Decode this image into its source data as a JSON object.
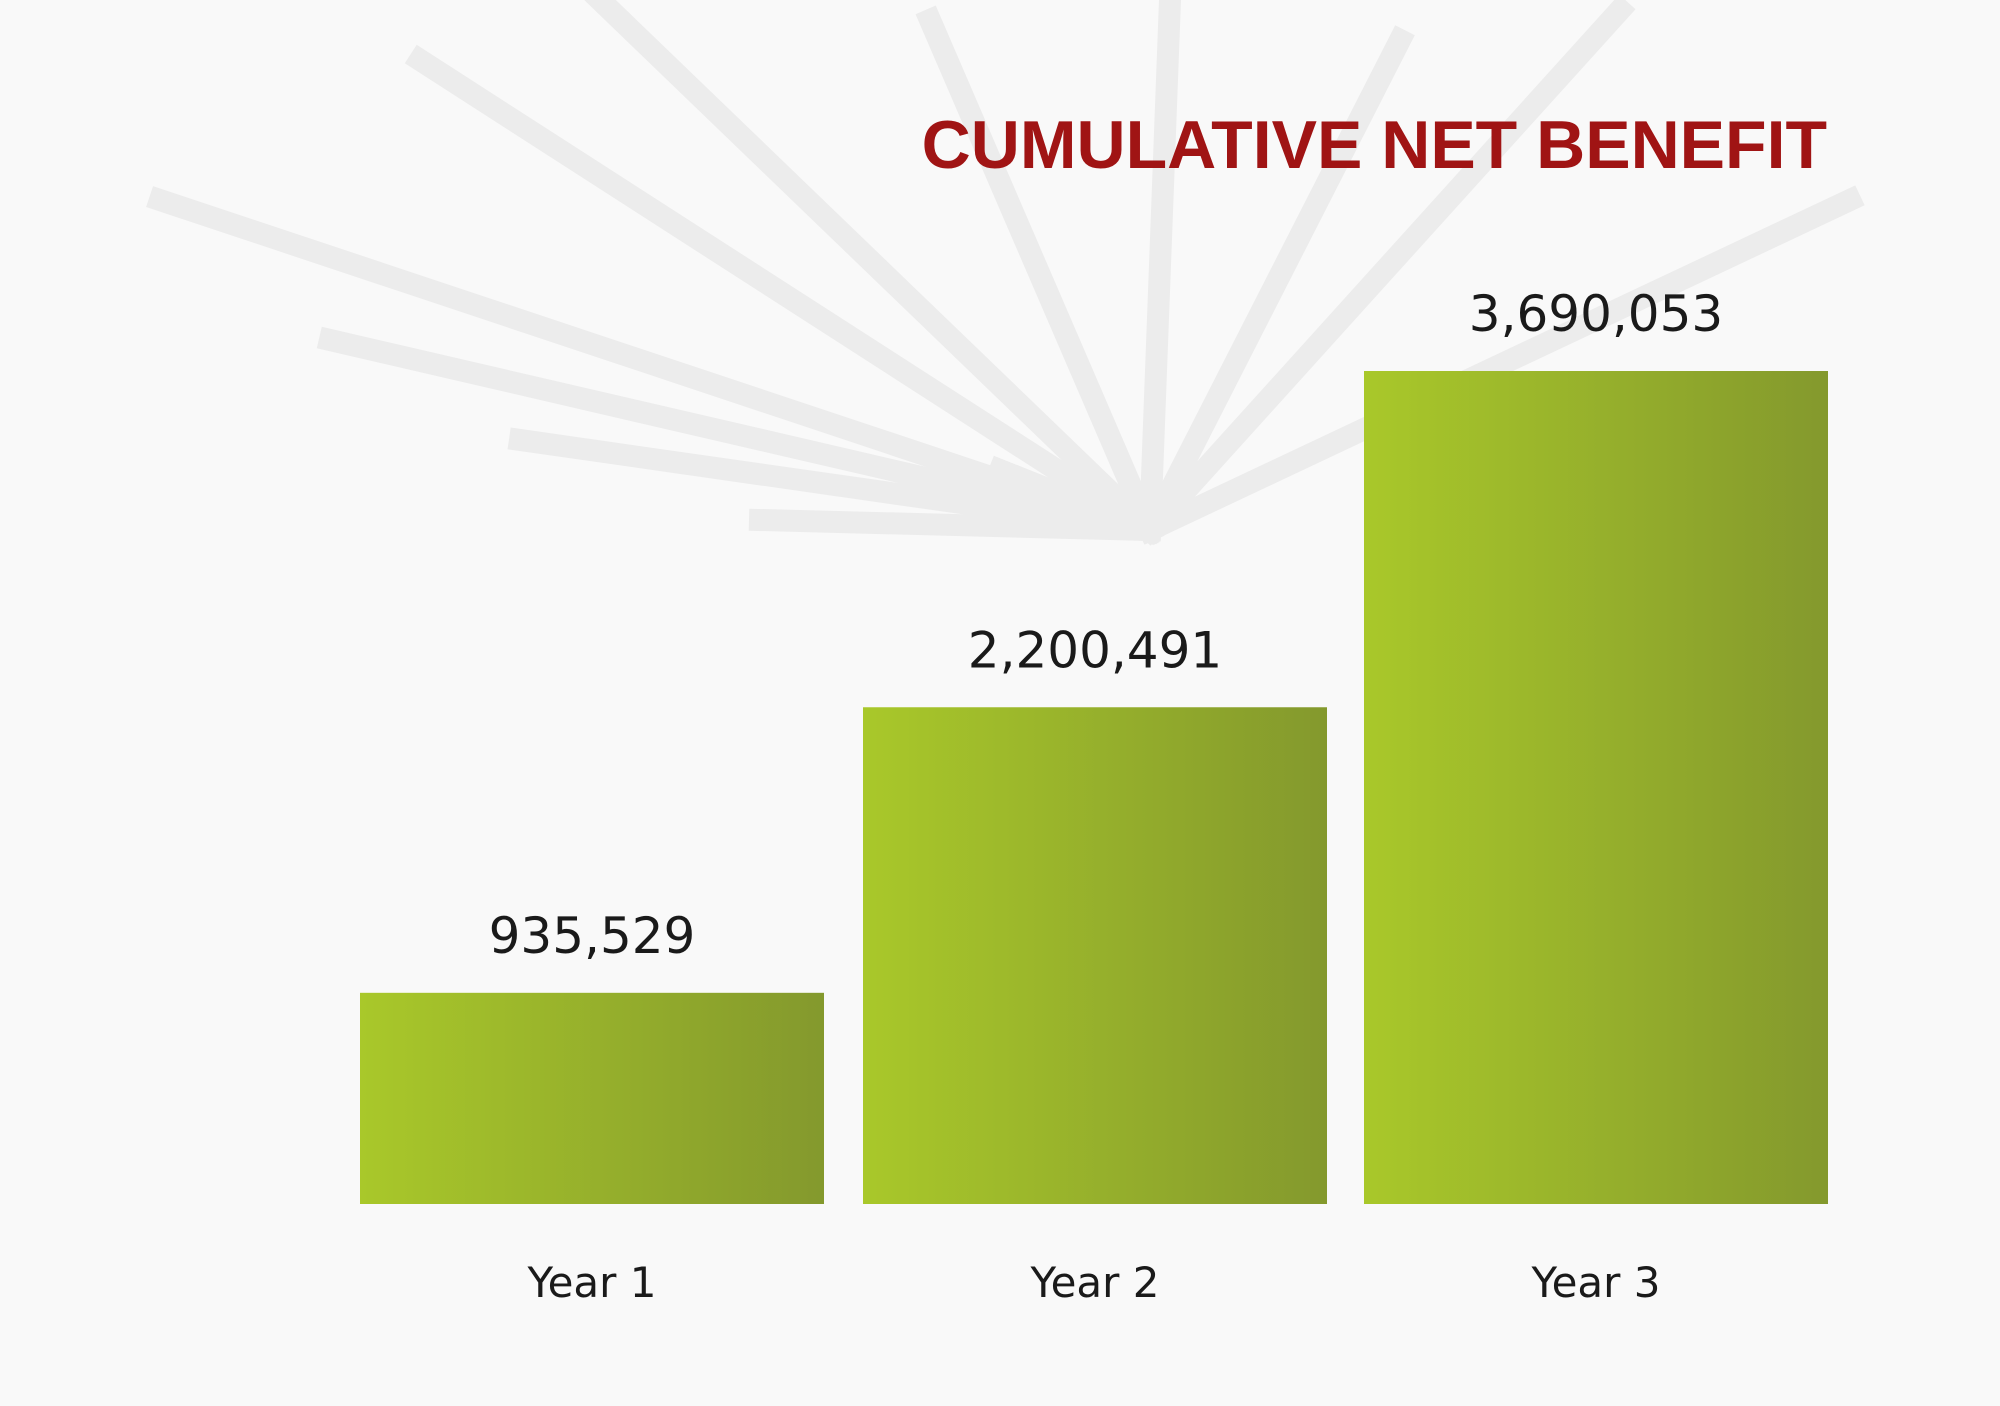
{
  "chart_data": {
    "type": "bar",
    "title": "CUMULATIVE NET BENEFIT",
    "categories": [
      "Year 1",
      "Year 2",
      "Year 3"
    ],
    "values": [
      935529,
      2200491,
      3690053
    ],
    "value_labels": [
      "935,529",
      "2,200,491",
      "3,690,053"
    ],
    "color": "#a9c82a"
  }
}
